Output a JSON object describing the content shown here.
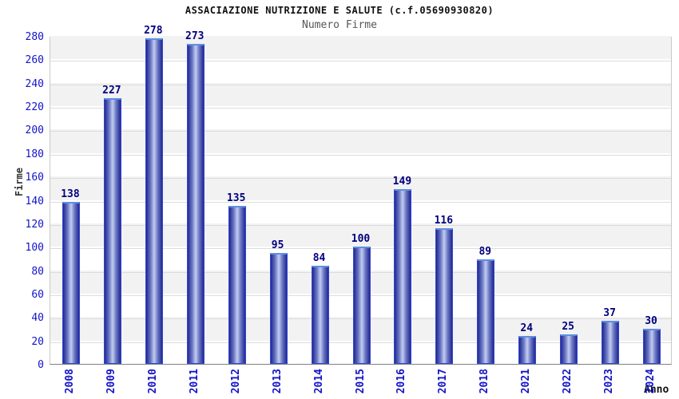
{
  "chart_data": {
    "type": "bar",
    "title": "ASSACIAZIONE NUTRIZIONE E SALUTE (c.f.05690930820)",
    "subtitle": "Numero Firme",
    "xlabel": "Anno",
    "ylabel": "Firme",
    "categories": [
      "2008",
      "2009",
      "2010",
      "2011",
      "2012",
      "2013",
      "2014",
      "2015",
      "2016",
      "2017",
      "2018",
      "2021",
      "2022",
      "2023",
      "2024"
    ],
    "values": [
      138,
      227,
      278,
      273,
      135,
      95,
      84,
      100,
      149,
      116,
      89,
      24,
      25,
      37,
      30
    ],
    "ylim": [
      0,
      280
    ],
    "ytick_step": 20,
    "grid": "horizontal-bands",
    "legend": "none",
    "colors": {
      "title": "#111111",
      "subtitle": "#555555",
      "tick_label": "#1414c8",
      "value_label": "#000080",
      "axis_label": "#333333",
      "band_gray": "#f2f2f2",
      "gridline": "#dcdcdc",
      "plot_border": "#c9c9c9",
      "axis_line": "#808080",
      "bar_dark": "#23278f",
      "bar_mid": "#6a77c4",
      "bar_light": "#c3cdf0",
      "bar_outline": "#2e49d6",
      "bar_top_edge": "#5d8fe2"
    }
  }
}
